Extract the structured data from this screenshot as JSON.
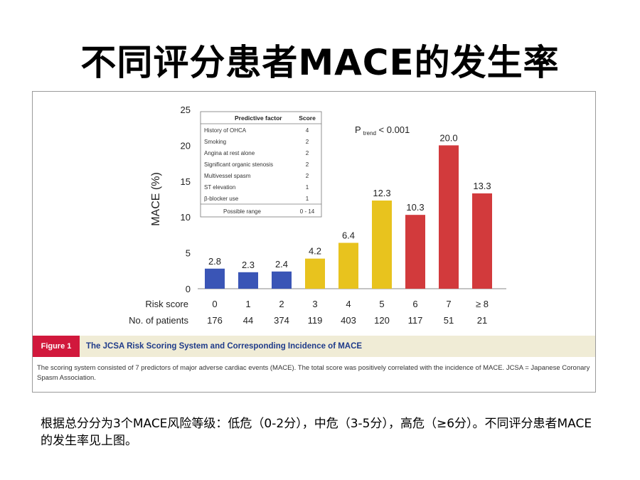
{
  "slide": {
    "title": "不同评分患者MACE的发生率",
    "note": "根据总分分为3个MACE风险等级：低危（0-2分），中危（3-5分），高危（≥6分）。不同评分患者MACE的发生率见上图。"
  },
  "figure": {
    "label": "Figure 1",
    "title": "The JCSA Risk Scoring System and Corresponding Incidence of MACE",
    "caption": "The scoring system consisted of 7 predictors of major adverse cardiac events (MACE). The total score was positively correlated with the incidence of MACE. JCSA = Japanese Coronary Spasm Association.",
    "colors": {
      "label_bg": "#d1183c",
      "title_text": "#1f3b8a",
      "caption_bg": "#f0ecd6"
    }
  },
  "chart_data": {
    "type": "bar",
    "ylabel": "MACE (%)",
    "ylim": [
      0,
      25
    ],
    "yticks": [
      "0",
      "5",
      "10",
      "15",
      "20",
      "25"
    ],
    "grid": false,
    "categories": [
      "0",
      "1",
      "2",
      "3",
      "4",
      "5",
      "6",
      "7",
      "≥ 8"
    ],
    "values": [
      2.8,
      2.3,
      2.4,
      4.2,
      6.4,
      12.3,
      10.3,
      20.0,
      13.3
    ],
    "value_labels": [
      "2.8",
      "2.3",
      "2.4",
      "4.2",
      "6.4",
      "12.3",
      "10.3",
      "20.0",
      "13.3"
    ],
    "bar_colors": [
      "#3a55b6",
      "#3a55b6",
      "#3a55b6",
      "#e8c31e",
      "#e8c31e",
      "#e8c31e",
      "#d23a3c",
      "#d23a3c",
      "#d23a3c"
    ],
    "row_label_score": "Risk score",
    "row_label_patients": "No. of patients",
    "patients": [
      "176",
      "44",
      "374",
      "119",
      "403",
      "120",
      "117",
      "51",
      "21"
    ],
    "annotation": {
      "p_main": "P",
      "p_sub": "trend",
      "p_rest": " < 0.001"
    },
    "legend_table": {
      "headers": [
        "Predictive factor",
        "Score"
      ],
      "rows": [
        [
          "History of OHCA",
          "4"
        ],
        [
          "Smoking",
          "2"
        ],
        [
          "Angina at rest alone",
          "2"
        ],
        [
          "Significant organic stenosis",
          "2"
        ],
        [
          "Multivessel spasm",
          "2"
        ],
        [
          "ST elevation",
          "1"
        ],
        [
          "β-blocker use",
          "1"
        ]
      ],
      "footer": [
        "Possible range",
        "0 - 14"
      ]
    }
  }
}
